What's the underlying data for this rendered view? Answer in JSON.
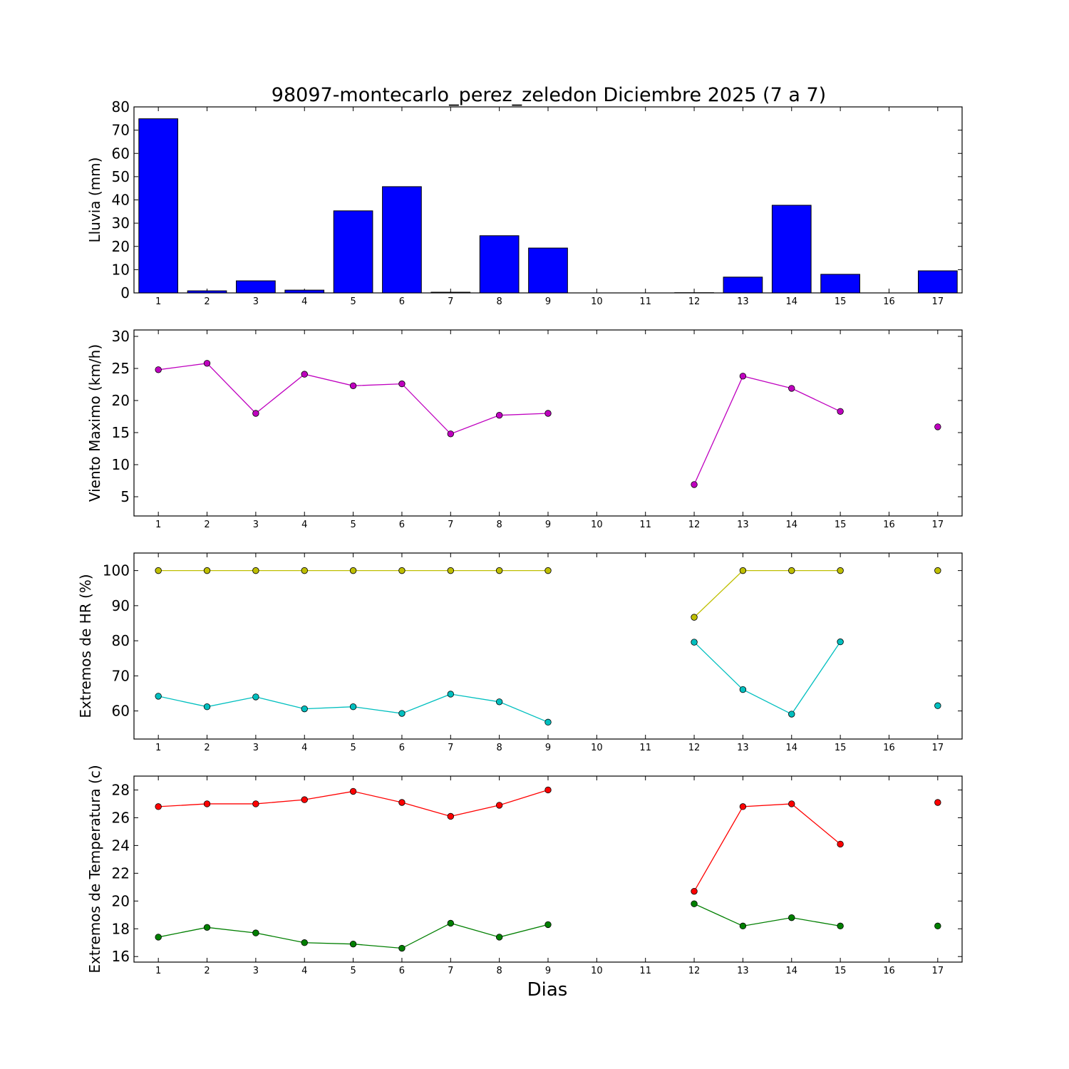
{
  "title": "98097-montecarlo_perez_zeledon Diciembre 2025  (7 a 7)",
  "xlabel": "Dias",
  "chart_data": [
    {
      "type": "bar",
      "ylabel": "Lluvia (mm)",
      "categories": [
        1,
        2,
        3,
        4,
        5,
        6,
        7,
        8,
        9,
        10,
        11,
        12,
        13,
        14,
        15,
        16,
        17
      ],
      "values": [
        74.9,
        0.9,
        5.2,
        1.2,
        35.3,
        45.7,
        0.3,
        24.6,
        19.3,
        0,
        0,
        0.1,
        6.8,
        37.7,
        8.0,
        0,
        9.5
      ],
      "ylim": [
        0,
        80
      ],
      "yticks": [
        0,
        10,
        20,
        30,
        40,
        50,
        60,
        70,
        80
      ],
      "colors": [
        "#0000ff"
      ]
    },
    {
      "type": "line",
      "ylabel": "Viento Maximo (km/h)",
      "x": [
        1,
        2,
        3,
        4,
        5,
        6,
        7,
        8,
        9,
        10,
        11,
        12,
        13,
        14,
        15,
        16,
        17
      ],
      "series": [
        {
          "values": [
            24.8,
            25.8,
            18.0,
            24.1,
            22.3,
            22.6,
            14.8,
            17.7,
            18.0,
            null,
            null,
            6.9,
            23.8,
            21.9,
            18.3,
            null,
            15.9
          ]
        }
      ],
      "ylim": [
        2,
        31
      ],
      "yticks": [
        5,
        10,
        15,
        20,
        25,
        30
      ],
      "colors": [
        "#bf00bf"
      ]
    },
    {
      "type": "line",
      "ylabel": "Extremos de HR (%)",
      "x": [
        1,
        2,
        3,
        4,
        5,
        6,
        7,
        8,
        9,
        10,
        11,
        12,
        13,
        14,
        15,
        16,
        17
      ],
      "series": [
        {
          "values": [
            100,
            100,
            100,
            100,
            100,
            100,
            100,
            100,
            100,
            null,
            null,
            86.7,
            100,
            100,
            100,
            null,
            100
          ]
        },
        {
          "values": [
            64.2,
            61.2,
            64.0,
            60.6,
            61.2,
            59.3,
            64.8,
            62.6,
            56.8,
            null,
            null,
            79.6,
            66.1,
            59.1,
            79.7,
            null,
            61.5
          ]
        }
      ],
      "ylim": [
        52,
        105
      ],
      "yticks": [
        60,
        70,
        80,
        90,
        100
      ],
      "colors": [
        "#bfbf00",
        "#00bfbf"
      ]
    },
    {
      "type": "line",
      "ylabel": "Extremos de Temperatura (c)",
      "x": [
        1,
        2,
        3,
        4,
        5,
        6,
        7,
        8,
        9,
        10,
        11,
        12,
        13,
        14,
        15,
        16,
        17
      ],
      "series": [
        {
          "values": [
            26.8,
            27.0,
            27.0,
            27.3,
            27.9,
            27.1,
            26.1,
            26.9,
            28.0,
            null,
            null,
            20.7,
            26.8,
            27.0,
            24.1,
            null,
            27.1
          ]
        },
        {
          "values": [
            17.4,
            18.1,
            17.7,
            17.0,
            16.9,
            16.6,
            18.4,
            17.4,
            18.3,
            null,
            null,
            19.8,
            18.2,
            18.8,
            18.2,
            null,
            18.2
          ]
        }
      ],
      "ylim": [
        15.6,
        29.0
      ],
      "yticks": [
        16,
        18,
        20,
        22,
        24,
        26,
        28
      ],
      "colors": [
        "#ff0000",
        "#007f00"
      ]
    }
  ]
}
